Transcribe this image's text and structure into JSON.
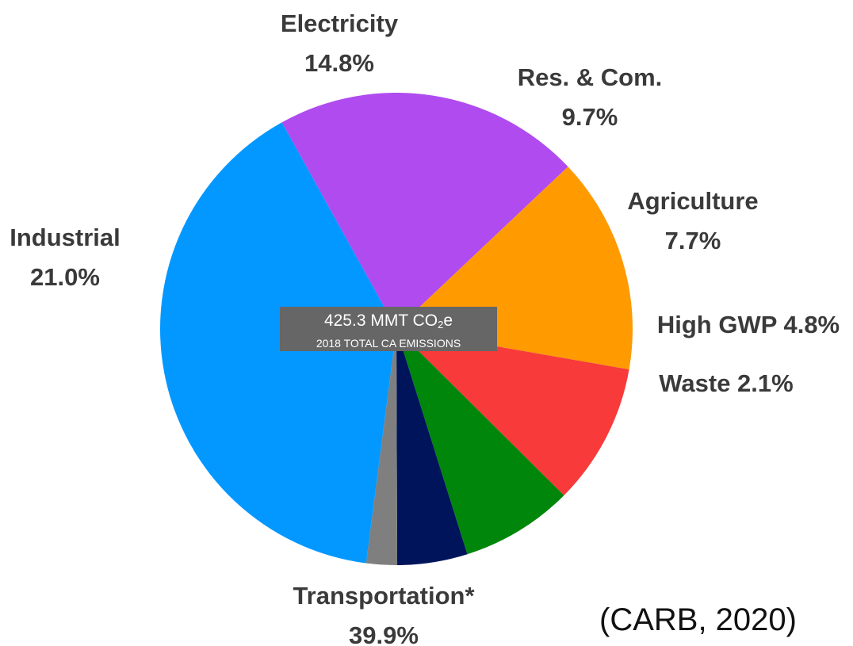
{
  "chart_data": {
    "type": "pie",
    "start_angle_deg": 119,
    "direction": "clockwise",
    "slices": [
      {
        "label": "Industrial",
        "value": 21.0,
        "value_label": "21.0%",
        "color": "#B04BF0"
      },
      {
        "label": "Electricity",
        "value": 14.8,
        "value_label": "14.8%",
        "color": "#FF9A00"
      },
      {
        "label": "Res. & Com.",
        "value": 9.7,
        "value_label": "9.7%",
        "color": "#F83A3A"
      },
      {
        "label": "Agriculture",
        "value": 7.7,
        "value_label": "7.7%",
        "color": "#00860A"
      },
      {
        "label": "High GWP",
        "value": 4.8,
        "value_label": "4.8%",
        "color": "#00145C"
      },
      {
        "label": "Waste",
        "value": 2.1,
        "value_label": "2.1%",
        "color": "#7F7F7F"
      },
      {
        "label": "Transportation*",
        "value": 39.9,
        "value_label": "39.9%",
        "color": "#0398FF"
      }
    ]
  },
  "center_label": {
    "main_prefix": "425.3 MMT CO",
    "main_subscript": "2",
    "main_suffix": "e",
    "subtitle": "2018 TOTAL CA EMISSIONS"
  },
  "source": "(CARB, 2020)"
}
